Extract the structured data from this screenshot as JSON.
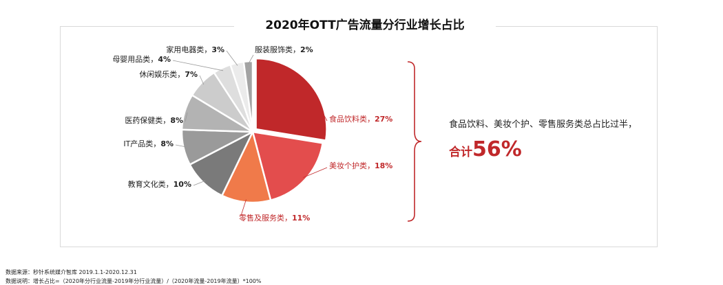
{
  "chart_data": {
    "type": "pie",
    "title": "2020年OTT广告流量分行业增长占比",
    "slices": [
      {
        "label": "食品饮料类",
        "value": 27,
        "text": "27%",
        "color": "#c0282a"
      },
      {
        "label": "美妆个护类",
        "value": 18,
        "text": "18%",
        "color": "#e34d4d"
      },
      {
        "label": "零售及服务类",
        "value": 11,
        "text": "11%",
        "color": "#f07a4a"
      },
      {
        "label": "教育文化类",
        "value": 10,
        "text": "10%",
        "color": "#7a7a7a"
      },
      {
        "label": "IT产品类",
        "value": 8,
        "text": "8%",
        "color": "#9a9a9a"
      },
      {
        "label": "医药保健类",
        "value": 8,
        "text": "8%",
        "color": "#b3b3b3"
      },
      {
        "label": "休闲娱乐类",
        "value": 7,
        "text": "7%",
        "color": "#cccccc"
      },
      {
        "label": "母婴用品类",
        "value": 4,
        "text": "4%",
        "color": "#dedede"
      },
      {
        "label": "家用电器类",
        "value": 3,
        "text": "3%",
        "color": "#ebebeb"
      },
      {
        "label": "服装服饰类",
        "value": 2,
        "text": "2%",
        "color": "#a3a3a3"
      }
    ]
  },
  "summary": {
    "line1": "食品饮料、美妆个护、零售服务类总占比过半，",
    "line2_prefix": "合计",
    "line2_value": "56%"
  },
  "footer": {
    "source": "数据来源：秒针系统媒介智库 2019.1.1-2020.12.31",
    "note": "数据说明：增长占比=（2020年分行业流量-2019年分行业流量）/（2020年流量-2019年流量）*100%"
  }
}
